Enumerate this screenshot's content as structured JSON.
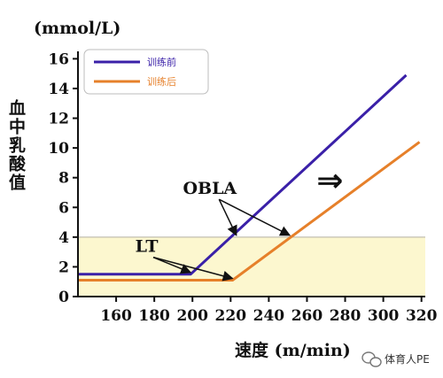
{
  "chart_data": {
    "type": "line",
    "ylabel_unit": "(mmol/L)",
    "ylabel": "血中乳酸值",
    "xlabel": "速度 (m/min)",
    "x_ticks": [
      160,
      180,
      200,
      220,
      240,
      260,
      280,
      300,
      320
    ],
    "y_ticks": [
      0,
      2,
      4,
      6,
      8,
      10,
      12,
      14,
      16
    ],
    "xlim": [
      140,
      322
    ],
    "ylim": [
      0,
      16.5
    ],
    "series": [
      {
        "name": "训练前",
        "color": "#3a20a8",
        "x": [
          140,
          199,
          312
        ],
        "y": [
          1.5,
          1.5,
          14.9
        ]
      },
      {
        "name": "训练后",
        "color": "#e6802a",
        "x": [
          140,
          221,
          319
        ],
        "y": [
          1.1,
          1.1,
          10.4
        ]
      }
    ],
    "threshold_band": {
      "y_from": 0,
      "y_to": 4,
      "color": "#fcf7cf",
      "line_color": "#b5b0a0"
    },
    "annotations": [
      {
        "text": "OBLA",
        "x": 195,
        "y": 6.9,
        "targets": [
          [
            223,
            4
          ],
          [
            251,
            4
          ]
        ]
      },
      {
        "text": "LT",
        "x": 170,
        "y": 3.0,
        "targets": [
          [
            199,
            1.5
          ],
          [
            221,
            1.1
          ]
        ]
      }
    ],
    "shift_symbol": "⇒",
    "shift_symbol_pos": {
      "x": 265,
      "y": 7.8
    },
    "legend_position": "top-left"
  },
  "watermark": {
    "text": "体育人PE",
    "icon": "wechat-icon"
  }
}
